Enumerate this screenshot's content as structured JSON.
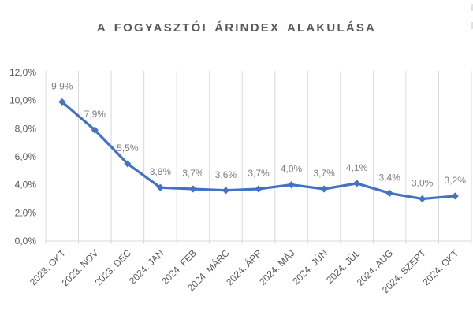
{
  "title": "A FOGYASZTÓI ÁRINDEX ALAKULÁSA",
  "chart_data": {
    "type": "line",
    "title": "A FOGYASZTÓI ÁRINDEX ALAKULÁSA",
    "categories": [
      "2023. OKT",
      "2023. NOV",
      "2023. DEC",
      "2024. JAN",
      "2024. FEB",
      "2024. MÁRC",
      "2024. ÁPR",
      "2024. MÁJ",
      "2024. JÚN",
      "2024. JÚL",
      "2024. AUG",
      "2024. SZEPT",
      "2024. OKT"
    ],
    "values": [
      9.9,
      7.9,
      5.5,
      3.8,
      3.7,
      3.6,
      3.7,
      4.0,
      3.7,
      4.1,
      3.4,
      3.0,
      3.2
    ],
    "data_labels": [
      "9,9%",
      "7,9%",
      "5,5%",
      "3,8%",
      "3,7%",
      "3,6%",
      "3,7%",
      "4,0%",
      "3,7%",
      "4,1%",
      "3,4%",
      "3,0%",
      "3,2%"
    ],
    "y_tick_labels": [
      "12,0%",
      "10,0%",
      "8,0%",
      "6,0%",
      "4,0%",
      "2,0%",
      "0,0%"
    ],
    "y_tick_values": [
      12,
      10,
      8,
      6,
      4,
      2,
      0
    ],
    "ylim": [
      0,
      12
    ],
    "xlabel": "",
    "ylabel": "",
    "legend": "none",
    "grid": "vertical-only",
    "marker": "diamond"
  },
  "style": {
    "line_color": "#4472C4",
    "marker_color": "#4472C4",
    "gridline_color": "#D9D9D9",
    "axis_line_color": "#D9D9D9",
    "title_color": "#595959",
    "axis_label_color": "#595959",
    "data_label_color": "#7F7F7F",
    "background": "#FFFFFF"
  }
}
